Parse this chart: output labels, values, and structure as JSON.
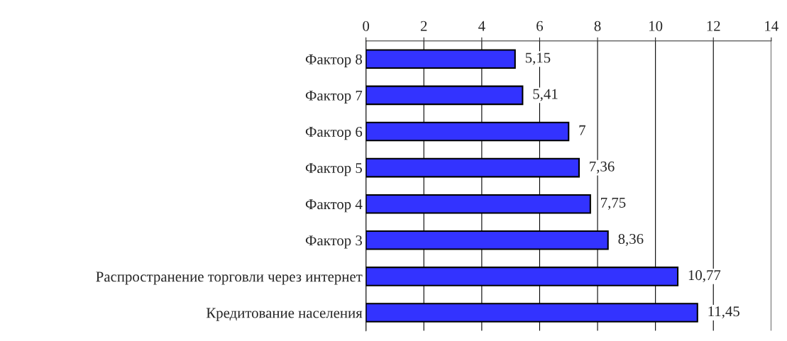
{
  "chart_data": {
    "type": "bar",
    "orientation": "horizontal",
    "categories": [
      "Фактор 8",
      "Фактор 7",
      "Фактор 6",
      "Фактор 5",
      "Фактор 4",
      "Фактор 3",
      "Распространение торговли через интернет",
      "Кредитование населения"
    ],
    "values": [
      5.15,
      5.41,
      7,
      7.36,
      7.75,
      8.36,
      10.77,
      11.45
    ],
    "value_labels": [
      "5,15",
      "5,41",
      "7",
      "7,36",
      "7,75",
      "8,36",
      "10,77",
      "11,45"
    ],
    "color": "#3333ff",
    "xlim": [
      0,
      14
    ],
    "xticks": [
      0,
      2,
      4,
      6,
      8,
      10,
      12,
      14
    ],
    "grid": "x",
    "legend": false
  }
}
